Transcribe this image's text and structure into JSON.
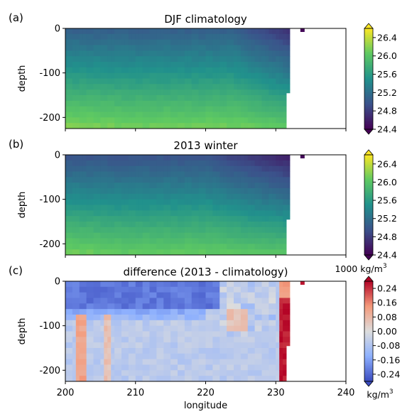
{
  "chart_data": [
    {
      "type": "heatmap",
      "panel_label": "(a)",
      "title": "DJF climatology",
      "ylabel": "depth",
      "xlim": [
        200,
        240
      ],
      "ylim": [
        -225,
        0
      ],
      "yticks": [
        0,
        -100,
        -200
      ],
      "xticks": [
        200,
        210,
        220,
        230,
        240
      ],
      "colorbar": {
        "colormap": "viridis",
        "range": [
          24.4,
          26.6
        ],
        "ticks": [
          "26.4",
          "26.0",
          "25.6",
          "25.2",
          "24.8",
          "24.4"
        ]
      },
      "data_extent_lon": 232
    },
    {
      "type": "heatmap",
      "panel_label": "(b)",
      "title": "2013 winter",
      "ylabel": "depth",
      "xlim": [
        200,
        240
      ],
      "ylim": [
        -225,
        0
      ],
      "yticks": [
        0,
        -100,
        -200
      ],
      "xticks": [
        200,
        210,
        220,
        230,
        240
      ],
      "colorbar": {
        "colormap": "viridis",
        "range": [
          24.4,
          26.6
        ],
        "ticks": [
          "26.4",
          "26.0",
          "25.6",
          "25.2",
          "24.8",
          "24.4"
        ],
        "offset_label": "1000 kg/m",
        "offset_label_sup": "3"
      },
      "data_extent_lon": 232
    },
    {
      "type": "heatmap",
      "panel_label": "(c)",
      "title": "difference (2013 - climatology)",
      "ylabel": "depth",
      "xlabel": "longitude",
      "xlim": [
        200,
        240
      ],
      "ylim": [
        -225,
        0
      ],
      "yticks": [
        0,
        -100,
        -200
      ],
      "xticks": [
        200,
        210,
        220,
        230,
        240
      ],
      "xtick_labels": [
        "200",
        "210",
        "220",
        "230",
        "240"
      ],
      "colorbar": {
        "colormap": "coolwarm",
        "range": [
          -0.28,
          0.28
        ],
        "ticks": [
          "0.24",
          "0.16",
          "0.08",
          "0.00",
          "-0.08",
          "-0.16",
          "-0.24"
        ],
        "unit_label": "kg/m",
        "unit_label_sup": "3"
      },
      "data_extent_lon": 232
    }
  ]
}
